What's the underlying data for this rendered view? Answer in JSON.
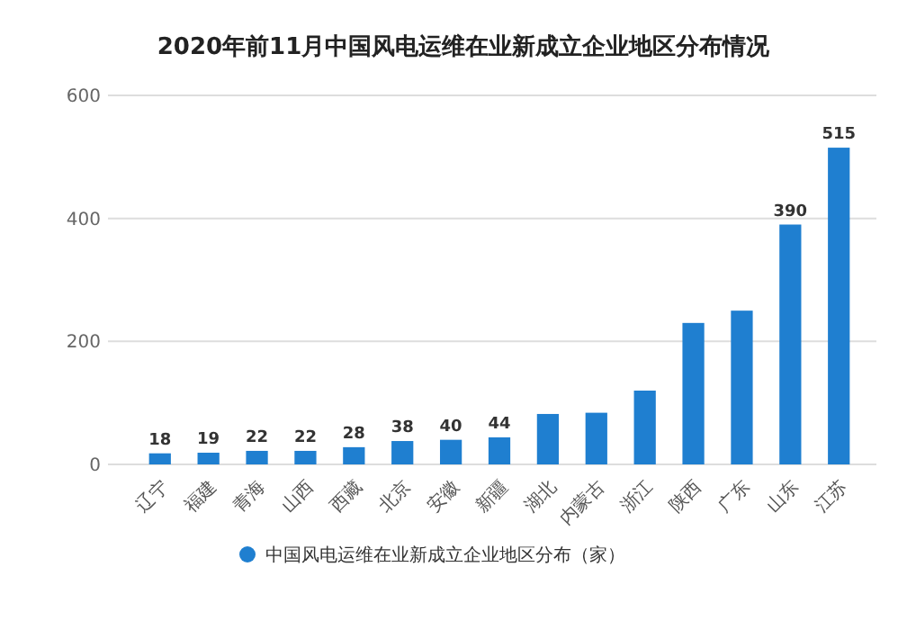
{
  "chart_data": {
    "type": "bar",
    "title": "2020年前11月中国风电运维在业新成立企业地区分布情况",
    "categories": [
      "辽宁",
      "福建",
      "青海",
      "山西",
      "西藏",
      "北京",
      "安徽",
      "新疆",
      "湖北",
      "内蒙古",
      "浙江",
      "陕西",
      "广东",
      "山东",
      "江苏"
    ],
    "series": [
      {
        "name": "中国风电运维在业新成立企业地区分布（家）",
        "color": "#1f7fd0",
        "values": [
          18,
          19,
          22,
          22,
          28,
          38,
          40,
          44,
          82,
          84,
          120,
          230,
          250,
          390,
          515
        ]
      }
    ],
    "value_labels": [
      "18",
      "19",
      "22",
      "22",
      "28",
      "38",
      "40",
      "44",
      null,
      null,
      null,
      null,
      null,
      "390",
      "515"
    ],
    "ylim": [
      0,
      600
    ],
    "yticks": [
      0,
      200,
      400,
      600
    ],
    "grid": "y",
    "legend": "bottom"
  }
}
